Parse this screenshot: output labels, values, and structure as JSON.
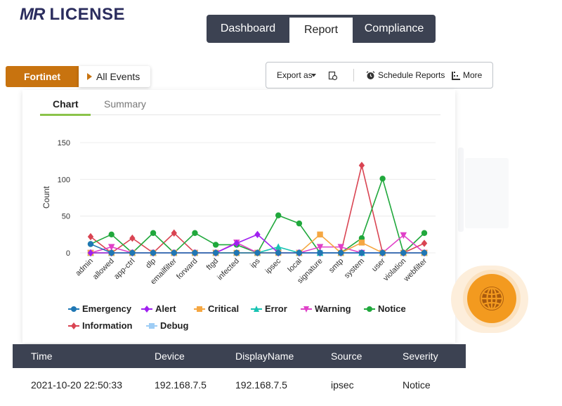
{
  "brand": {
    "logo_prefix": "MR",
    "logo_suffix": " LICENSE"
  },
  "nav": {
    "tabs": [
      {
        "label": "Dashboard",
        "active": false
      },
      {
        "label": "Report",
        "active": true
      },
      {
        "label": "Compliance",
        "active": false
      }
    ]
  },
  "filter": {
    "vendor": "Fortinet",
    "selection": "All Events"
  },
  "toolbar": {
    "export_label": "Export as",
    "schedule_label": "Schedule Reports",
    "more_label": "More"
  },
  "content_tabs": [
    {
      "label": "Chart",
      "active": true
    },
    {
      "label": "Summary",
      "active": false
    }
  ],
  "chart_data": {
    "type": "line",
    "ylabel": "Count",
    "ylim": [
      0,
      150
    ],
    "yticks": [
      0,
      50,
      100,
      150
    ],
    "grid": true,
    "legend_position": "bottom",
    "categories": [
      "admin",
      "allowed",
      "app-ctrl",
      "dlp",
      "emailfilter",
      "forward",
      "ftgd",
      "infected",
      "ips",
      "ipsec",
      "local",
      "signature",
      "smtp",
      "system",
      "user",
      "violation",
      "webfilter"
    ],
    "series": [
      {
        "name": "Emergency",
        "color": "#1f77b4",
        "marker": "circle",
        "values": [
          12,
          0,
          0,
          0,
          0,
          0,
          0,
          0,
          0,
          0,
          0,
          0,
          0,
          0,
          0,
          0,
          0
        ]
      },
      {
        "name": "Alert",
        "color": "#a020f0",
        "marker": "diamond",
        "values": [
          0,
          0,
          0,
          0,
          0,
          0,
          0,
          13,
          25,
          0,
          0,
          0,
          0,
          0,
          0,
          0,
          0
        ]
      },
      {
        "name": "Critical",
        "color": "#f5a742",
        "marker": "square",
        "values": [
          0,
          0,
          0,
          0,
          0,
          0,
          0,
          0,
          0,
          0,
          0,
          25,
          0,
          14,
          0,
          0,
          0
        ]
      },
      {
        "name": "Error",
        "color": "#17c3b2",
        "marker": "triangle-up",
        "values": [
          0,
          0,
          0,
          0,
          0,
          0,
          0,
          0,
          0,
          8,
          0,
          0,
          0,
          0,
          0,
          0,
          0
        ]
      },
      {
        "name": "Warning",
        "color": "#e040c8",
        "marker": "triangle-down",
        "values": [
          0,
          8,
          0,
          0,
          0,
          0,
          0,
          14,
          0,
          0,
          0,
          8,
          8,
          0,
          0,
          24,
          0
        ]
      },
      {
        "name": "Notice",
        "color": "#20a83c",
        "marker": "circle",
        "values": [
          12,
          25,
          0,
          27,
          0,
          27,
          11,
          11,
          0,
          51,
          40,
          0,
          0,
          20,
          101,
          0,
          27
        ]
      },
      {
        "name": "Information",
        "color": "#d94452",
        "marker": "diamond",
        "values": [
          22,
          0,
          20,
          0,
          27,
          0,
          0,
          0,
          0,
          0,
          0,
          0,
          0,
          119,
          0,
          0,
          13
        ]
      },
      {
        "name": "Debug",
        "color": "#9ecdf5",
        "marker": "square",
        "values": [
          0,
          0,
          0,
          0,
          0,
          0,
          0,
          0,
          0,
          0,
          0,
          0,
          0,
          0,
          0,
          0,
          0
        ]
      }
    ]
  },
  "table": {
    "columns": [
      "Time",
      "Device",
      "DisplayName",
      "Source",
      "Severity"
    ],
    "rows": [
      {
        "time": "2021-10-20 22:50:33",
        "device": "192.168.7.5",
        "display_name": "192.168.7.5",
        "source": "ipsec",
        "severity": "Notice"
      }
    ]
  },
  "icons": {
    "export_caret": "caret-down-icon",
    "export_preview": "export-preview-icon",
    "schedule": "alarm-clock-icon",
    "more": "more-dots-icon",
    "globe": "globe-icon"
  },
  "colors": {
    "nav_bg": "#3c4252",
    "accent_orange": "#c8730f",
    "tab_green": "#8bc34a",
    "globe_orange": "#f39a1f"
  }
}
